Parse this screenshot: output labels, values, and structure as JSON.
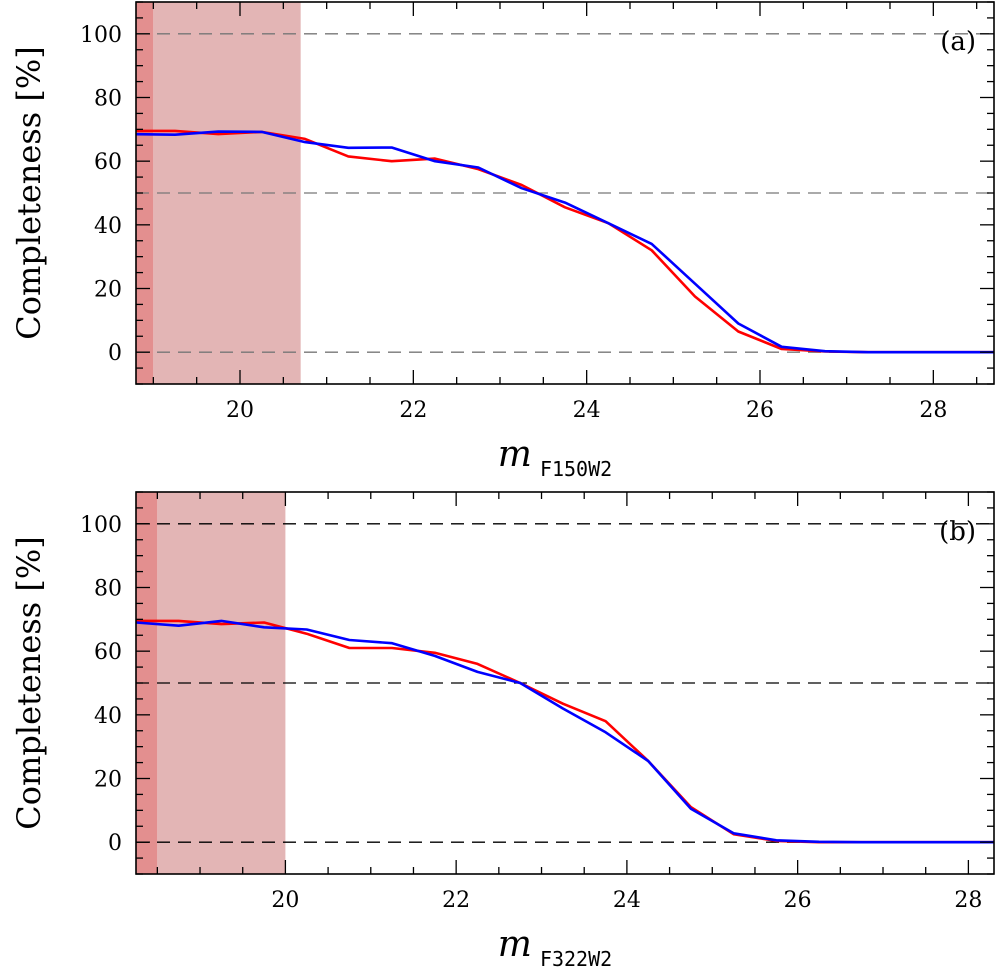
{
  "colors": {
    "series_red": "#ff0000",
    "series_blue": "#0000ff",
    "shade_light": "#e3b5b5",
    "shade_dark": "#e38f8f",
    "reference_line": "#000000"
  },
  "chart_data": [
    {
      "type": "line",
      "panel_label": "(a)",
      "ylabel": "Completeness [%]",
      "xlabel_main": "m",
      "xlabel_sub": "F150W2",
      "xlim": [
        18.8,
        28.7
      ],
      "ylim": [
        -10,
        110
      ],
      "xticks": [
        20,
        22,
        24,
        26,
        28
      ],
      "yticks": [
        0,
        20,
        40,
        60,
        80,
        100
      ],
      "reference_lines_y": [
        0,
        50,
        100
      ],
      "reference_line_color": "#777777",
      "shaded_regions": [
        {
          "x": [
            18.8,
            19.0
          ],
          "color": "#e38f8f"
        },
        {
          "x": [
            19.0,
            20.7
          ],
          "color": "#e3b5b5"
        }
      ],
      "grid": false,
      "legend": "none",
      "series": [
        {
          "color": "#ff0000",
          "x": [
            18.75,
            19.25,
            19.75,
            20.25,
            20.75,
            21.25,
            21.75,
            22.25,
            22.75,
            23.25,
            23.75,
            24.25,
            24.75,
            25.25,
            25.75,
            26.25,
            26.75,
            27.25,
            27.75,
            28.25,
            28.75
          ],
          "y": [
            69.5,
            69.5,
            68.5,
            69.2,
            67.0,
            61.5,
            60.0,
            60.8,
            57.5,
            52.5,
            45.5,
            40.5,
            32.0,
            17.5,
            6.5,
            1.0,
            0.2,
            0.0,
            0.0,
            0.0,
            0.0
          ]
        },
        {
          "color": "#0000ff",
          "x": [
            18.75,
            19.25,
            19.75,
            20.25,
            20.75,
            21.25,
            21.75,
            22.25,
            22.75,
            23.25,
            23.75,
            24.25,
            24.75,
            25.25,
            25.75,
            26.25,
            26.75,
            27.25,
            27.75,
            28.25,
            28.75
          ],
          "y": [
            68.5,
            68.3,
            69.3,
            69.2,
            66.0,
            64.2,
            64.3,
            60.0,
            58.0,
            51.5,
            47.0,
            40.5,
            34.0,
            21.5,
            9.0,
            1.7,
            0.3,
            0.0,
            0.0,
            0.0,
            0.0
          ]
        }
      ]
    },
    {
      "type": "line",
      "panel_label": "(b)",
      "ylabel": "Completeness [%]",
      "xlabel_main": "m",
      "xlabel_sub": "F322W2",
      "xlim": [
        18.25,
        28.3
      ],
      "ylim": [
        -10,
        110
      ],
      "xticks": [
        20,
        22,
        24,
        26,
        28
      ],
      "yticks": [
        0,
        20,
        40,
        60,
        80,
        100
      ],
      "reference_lines_y": [
        0,
        50,
        100
      ],
      "reference_line_color": "#000000",
      "shaded_regions": [
        {
          "x": [
            18.25,
            18.5
          ],
          "color": "#e38f8f"
        },
        {
          "x": [
            18.5,
            20.0
          ],
          "color": "#e3b5b5"
        }
      ],
      "grid": false,
      "legend": "none",
      "series": [
        {
          "color": "#ff0000",
          "x": [
            18.25,
            18.75,
            19.25,
            19.75,
            20.25,
            20.75,
            21.25,
            21.75,
            22.25,
            22.75,
            23.25,
            23.75,
            24.25,
            24.75,
            25.25,
            25.75,
            26.25,
            26.75,
            27.25,
            27.75,
            28.25,
            28.75
          ],
          "y": [
            69.5,
            69.5,
            68.5,
            69.0,
            65.5,
            61.0,
            61.0,
            59.5,
            56.0,
            50.0,
            43.5,
            38.0,
            25.5,
            11.0,
            2.5,
            0.4,
            0.0,
            0.0,
            0.0,
            0.0,
            0.0,
            0.0
          ]
        },
        {
          "color": "#0000ff",
          "x": [
            18.25,
            18.75,
            19.25,
            19.75,
            20.25,
            20.75,
            21.25,
            21.75,
            22.25,
            22.75,
            23.25,
            23.75,
            24.25,
            24.75,
            25.25,
            25.75,
            26.25,
            26.75,
            27.25,
            27.75,
            28.25,
            28.75
          ],
          "y": [
            69.0,
            68.0,
            69.5,
            67.5,
            66.8,
            63.5,
            62.5,
            58.5,
            53.5,
            50.0,
            42.0,
            34.5,
            25.5,
            10.5,
            2.8,
            0.6,
            0.1,
            0.0,
            0.0,
            0.0,
            0.0,
            0.0
          ]
        }
      ]
    }
  ]
}
